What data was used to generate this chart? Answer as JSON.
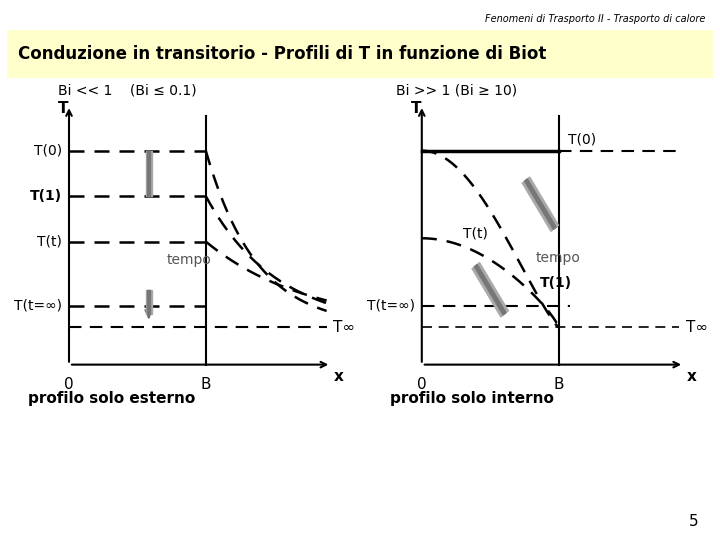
{
  "title_header": "Fenomeni di Trasporto II - Trasporto di calore",
  "title_main": "Conduzione in transitorio - Profili di T in funzione di Biot",
  "left_case": "Bi << 1    (Bi ≤ 0.1)",
  "right_case": "Bi >> 1 (Bi ≥ 10)",
  "left_subtitle": "profilo solo esterno",
  "right_subtitle": "profilo solo interno",
  "page_number": "5",
  "bg_yellow": "#ffffcc",
  "bg_white": "#ffffff",
  "T0": 0.8,
  "T1": 0.63,
  "Tt": 0.46,
  "Tinf_label": 0.22,
  "Tinf_line": 0.14,
  "B": 0.6,
  "x_max": 1.15
}
